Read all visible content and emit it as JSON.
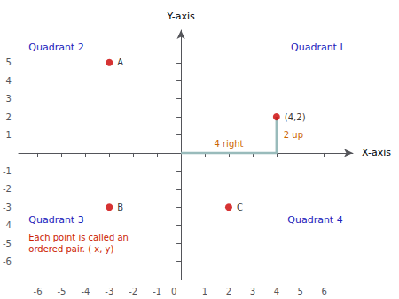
{
  "chart_data": {
    "type": "scatter",
    "xlabel": "X-axis",
    "ylabel": "Y-axis",
    "xlim": [
      -6.8,
      7.2
    ],
    "ylim": [
      -7.0,
      6.8
    ],
    "xticks": [
      -6,
      -5,
      -4,
      -3,
      -2,
      -1,
      0,
      1,
      2,
      3,
      4,
      5,
      6
    ],
    "yticks": [
      -6,
      -5,
      -4,
      -3,
      -2,
      -1,
      1,
      2,
      3,
      4,
      5
    ],
    "grid": false,
    "series": [
      {
        "type": "line",
        "x": [
          0,
          4,
          4
        ],
        "y": [
          0,
          0,
          2
        ],
        "color": "#99bbbb",
        "segment_labels": [
          "4 right",
          "2 up"
        ],
        "label_color": "#cc6600"
      },
      {
        "type": "scatter",
        "x": [
          -3,
          -3,
          2,
          4
        ],
        "y": [
          5,
          -3,
          -3,
          2
        ],
        "labels": [
          "A",
          "B",
          "C",
          "(4,2)"
        ],
        "color": "#cc0000"
      }
    ],
    "quadrant_labels": [
      "Quadrant I",
      "Quadrant 2",
      "Quadrant 3",
      "Quadrant 4"
    ],
    "quadrant_color": "#2222bb",
    "note": "Each point is called an\nordered pair. ( x, y)",
    "note_color": "#cc2200"
  }
}
